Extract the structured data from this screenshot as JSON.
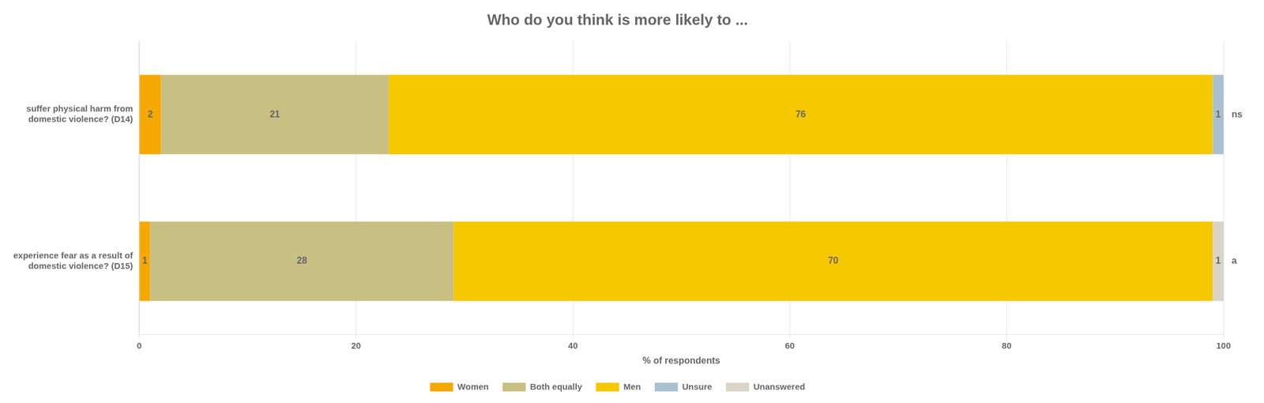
{
  "chart_data": {
    "type": "bar",
    "orientation": "horizontal",
    "stacked": true,
    "title": "Who do you think is more likely to ...",
    "categories": [
      "suffer physical harm from\ndomestic violence? (D14)",
      "experience fear as a result of\ndomestic violence? (D15)"
    ],
    "series": [
      {
        "name": "Women",
        "color": "#F5A800",
        "values": [
          2,
          1
        ]
      },
      {
        "name": "Both equally",
        "color": "#C8BF82",
        "values": [
          21,
          28
        ]
      },
      {
        "name": "Men",
        "color": "#F5C800",
        "values": [
          76,
          70
        ]
      },
      {
        "name": "Unsure",
        "color": "#A8C0D0",
        "values": [
          1,
          0
        ]
      },
      {
        "name": "Unanswered",
        "color": "#D8D4C8",
        "values": [
          0,
          1
        ]
      }
    ],
    "annotations": [
      "ns",
      "a"
    ],
    "xlabel": "% of respondents",
    "xlim": [
      0,
      100
    ],
    "xticks": [
      0,
      20,
      40,
      60,
      80,
      100
    ],
    "grid": true,
    "legend": "bottom",
    "data_labels": true
  }
}
